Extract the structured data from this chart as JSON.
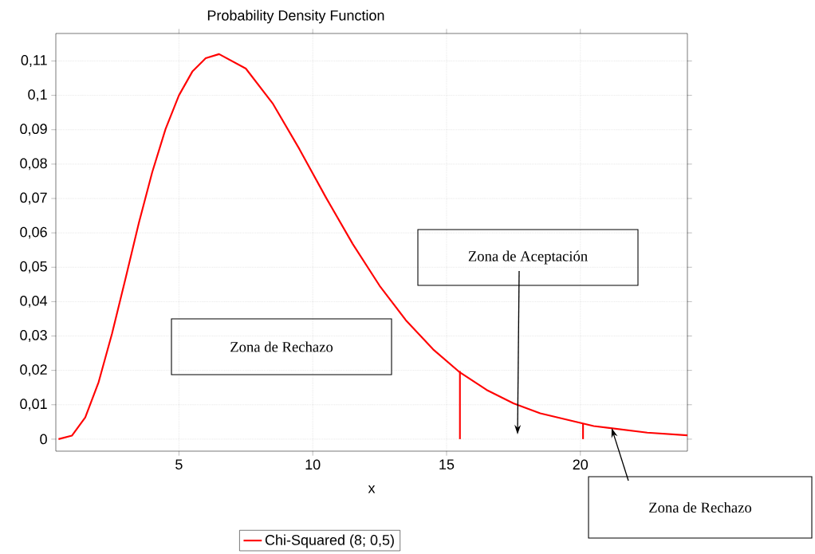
{
  "chart_data": {
    "type": "line",
    "title": "Probability Density Function",
    "xlabel": "x",
    "xlim": [
      0.4,
      24
    ],
    "ylim": [
      -0.0035,
      0.118
    ],
    "xticks": [
      5,
      10,
      15,
      20
    ],
    "yticks": [
      0,
      {
        "value": 0.01,
        "label": "0,01"
      },
      {
        "value": 0.02,
        "label": "0,02"
      },
      {
        "value": 0.03,
        "label": "0,03"
      },
      {
        "value": 0.04,
        "label": "0,04"
      },
      {
        "value": 0.05,
        "label": "0,05"
      },
      {
        "value": 0.06,
        "label": "0,06"
      },
      {
        "value": 0.07,
        "label": "0,07"
      },
      {
        "value": 0.08,
        "label": "0,08"
      },
      {
        "value": 0.09,
        "label": "0,09"
      },
      {
        "value": 0.1,
        "label": "0,1"
      },
      {
        "value": 0.11,
        "label": "0,11"
      }
    ],
    "grid": true,
    "legend": "bottom",
    "marker": "none",
    "line_style": "solid",
    "series": [
      {
        "name": "Chi-Squared  (8; 0,5)",
        "color": "#ff0000",
        "x": [
          0.5,
          1,
          1.5,
          2,
          2.5,
          3,
          3.5,
          4,
          4.5,
          5,
          5.5,
          6,
          6.5,
          7.5,
          8.5,
          9.5,
          10.5,
          11.5,
          12.5,
          13.5,
          14.5,
          15.5,
          16.5,
          17.5,
          18.5,
          20.5,
          22.5,
          24
        ],
        "values": [
          0,
          0.001,
          0.0063,
          0.0166,
          0.0307,
          0.0466,
          0.0628,
          0.0776,
          0.0902,
          0.1,
          0.1069,
          0.1108,
          0.112,
          0.1078,
          0.0977,
          0.0844,
          0.0702,
          0.0567,
          0.0446,
          0.0344,
          0.0261,
          0.0194,
          0.0143,
          0.0104,
          0.0075,
          0.0038,
          0.0019,
          0.0011
        ]
      },
      {
        "type": "line",
        "color": "#ff0000",
        "x": [
          15.5,
          15.5
        ],
        "values": [
          0,
          0.0198
        ]
      },
      {
        "type": "line",
        "color": "#ff0000",
        "x": [
          20.1,
          20.1
        ],
        "values": [
          0,
          0.0045
        ]
      }
    ],
    "annotations": [
      "Zona de Rechazo",
      "Zona de Aceptación",
      "Zona de Rechazo"
    ]
  }
}
